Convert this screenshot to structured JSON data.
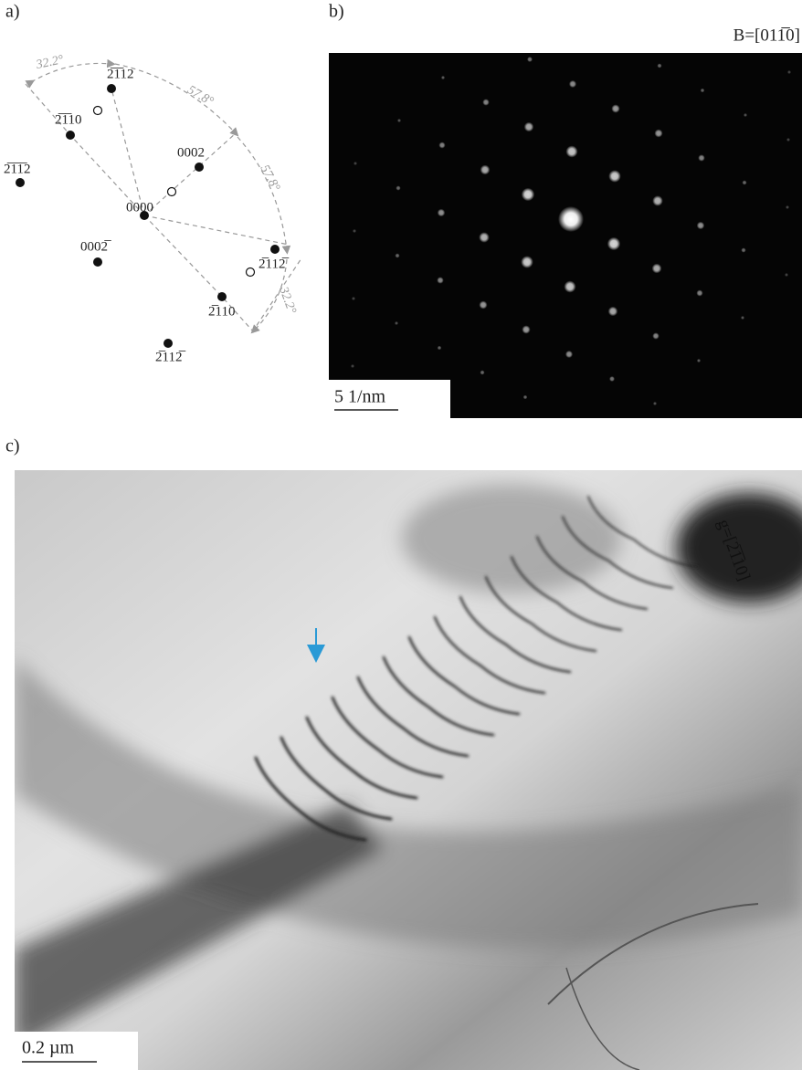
{
  "panels": {
    "a": "a)",
    "b": "b)",
    "c": "c)"
  },
  "diagram": {
    "spots": [
      {
        "label": "2̅1̅12"
      },
      {
        "label": "2̅1̅10"
      },
      {
        "label": "2̅1̅1̅2"
      },
      {
        "label": "0002"
      },
      {
        "label": "0000"
      },
      {
        "label": "0002̅"
      },
      {
        "label": "2̅112̅"
      },
      {
        "label": "2̅110"
      },
      {
        "label": "2̅112̅"
      }
    ],
    "angles": [
      "32.2°",
      "57.8°",
      "57.8°",
      "32.2°"
    ]
  },
  "diffraction": {
    "zone_axis": "B=[011̅0]",
    "scale_bar": "5 1/nm"
  },
  "micrograph": {
    "g_vector": "g=[2̅1̅10]",
    "scale_bar": "0.2 µm"
  }
}
